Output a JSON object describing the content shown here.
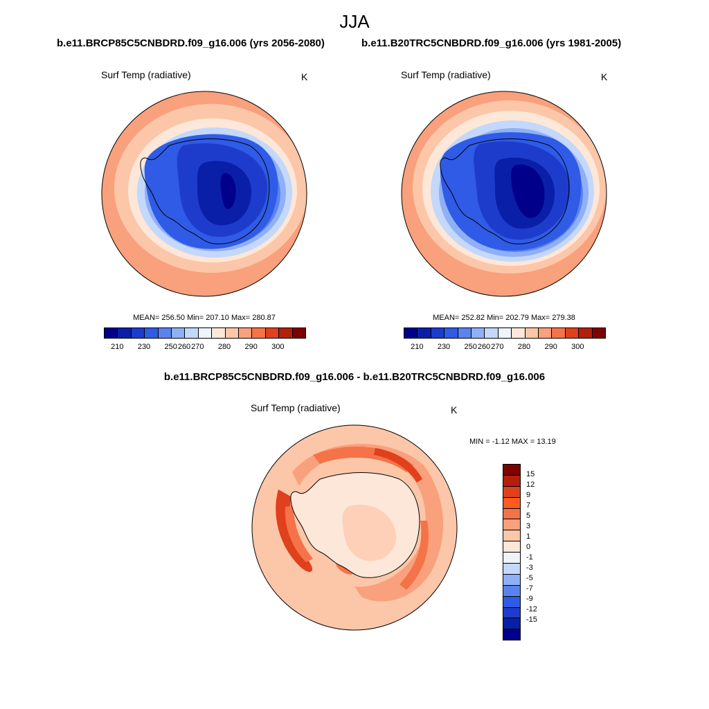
{
  "title": "JJA",
  "panels": [
    {
      "case": "b.e11.BRCP85C5CNBDRD.f09_g16.006 (yrs 2056-2080)",
      "variable": "Surf Temp (radiative)",
      "units": "K",
      "stats": "MEAN= 256.50  Min= 207.10  Max= 280.87"
    },
    {
      "case": "b.e11.B20TRC5CNBDRD.f09_g16.006 (yrs 1981-2005)",
      "variable": "Surf Temp (radiative)",
      "units": "K",
      "stats": "MEAN= 252.82  Min= 202.79  Max= 279.38"
    }
  ],
  "diff": {
    "title": "b.e11.BRCP85C5CNBDRD.f09_g16.006 - b.e11.B20TRC5CNBDRD.f09_g16.006",
    "variable": "Surf Temp (radiative)",
    "units": "K",
    "minmax": "MIN =  -1.12 MAX =  13.19"
  },
  "colorbar_abs": {
    "colors": [
      "#00008b",
      "#0a1fa8",
      "#1e3ccc",
      "#2f5be6",
      "#5a83f0",
      "#8fb0f5",
      "#c3d8fa",
      "#eef4fc",
      "#fde7d8",
      "#fcc6a9",
      "#f9a07c",
      "#f57348",
      "#e0401c",
      "#b3200a",
      "#7f0000"
    ],
    "labels": [
      "210",
      "230",
      "250",
      "260",
      "270",
      "280",
      "290",
      "300"
    ]
  },
  "colorbar_diff": {
    "colors": [
      "#7f0000",
      "#b3200a",
      "#e0401c",
      "#ff5a1f",
      "#f57348",
      "#f9a07c",
      "#fcc6a9",
      "#fde7d8",
      "#eef4fc",
      "#c3d8fa",
      "#8fb0f5",
      "#5a83f0",
      "#2f5be6",
      "#1e3ccc",
      "#0a1fa8",
      "#00008b"
    ],
    "labels": [
      "15",
      "12",
      "9",
      "7",
      "5",
      "3",
      "1",
      "0",
      "-1",
      "-3",
      "-5",
      "-7",
      "-9",
      "-12",
      "-15"
    ]
  }
}
